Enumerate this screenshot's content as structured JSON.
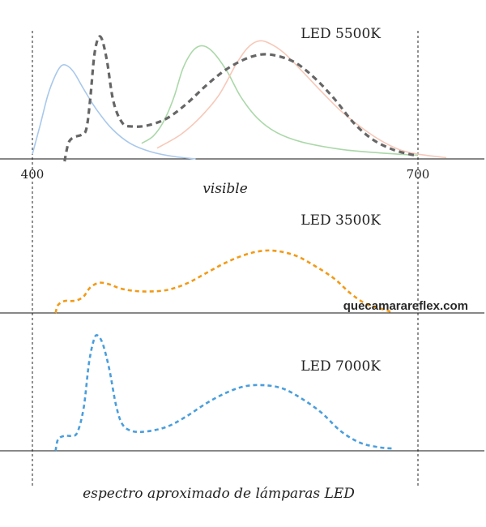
{
  "chart_data": [
    {
      "type": "line",
      "title": "LED 5500K",
      "xlabel": "visible",
      "xlim": [
        400,
        700
      ],
      "x_ticks": [
        "400",
        "700"
      ],
      "series": [
        {
          "color": "#a8c8ec",
          "style": "solid",
          "points": [
            [
              400,
              0.04
            ],
            [
              406,
              0.28
            ],
            [
              412,
              0.53
            ],
            [
              418,
              0.7
            ],
            [
              423,
              0.78
            ],
            [
              428,
              0.77
            ],
            [
              433,
              0.71
            ],
            [
              440,
              0.58
            ],
            [
              450,
              0.41
            ],
            [
              462,
              0.25
            ],
            [
              476,
              0.13
            ],
            [
              492,
              0.06
            ],
            [
              510,
              0.02
            ],
            [
              527,
              0.0
            ]
          ]
        },
        {
          "color": "#aad8a8",
          "style": "solid",
          "points": [
            [
              485,
              0.13
            ],
            [
              494,
              0.19
            ],
            [
              502,
              0.31
            ],
            [
              510,
              0.51
            ],
            [
              517,
              0.75
            ],
            [
              524,
              0.89
            ],
            [
              530,
              0.94
            ],
            [
              536,
              0.93
            ],
            [
              543,
              0.86
            ],
            [
              552,
              0.72
            ],
            [
              562,
              0.52
            ],
            [
              575,
              0.34
            ],
            [
              590,
              0.22
            ],
            [
              610,
              0.14
            ],
            [
              640,
              0.08
            ],
            [
              670,
              0.05
            ],
            [
              700,
              0.03
            ]
          ]
        },
        {
          "color": "#f7c8b8",
          "style": "solid",
          "points": [
            [
              497,
              0.09
            ],
            [
              515,
              0.2
            ],
            [
              530,
              0.34
            ],
            [
              545,
              0.53
            ],
            [
              558,
              0.78
            ],
            [
              567,
              0.92
            ],
            [
              575,
              0.98
            ],
            [
              583,
              0.97
            ],
            [
              595,
              0.89
            ],
            [
              610,
              0.73
            ],
            [
              625,
              0.56
            ],
            [
              640,
              0.4
            ],
            [
              655,
              0.27
            ],
            [
              670,
              0.16
            ],
            [
              685,
              0.08
            ],
            [
              700,
              0.04
            ],
            [
              722,
              0.01
            ]
          ]
        },
        {
          "color": "#666666",
          "style": "dashed",
          "points": [
            [
              425,
              -0.02
            ],
            [
              428,
              0.13
            ],
            [
              432,
              0.18
            ],
            [
              438,
              0.2
            ],
            [
              442,
              0.25
            ],
            [
              445,
              0.5
            ],
            [
              448,
              0.85
            ],
            [
              451,
              1.0
            ],
            [
              454,
              1.0
            ],
            [
              458,
              0.82
            ],
            [
              463,
              0.48
            ],
            [
              470,
              0.3
            ],
            [
              478,
              0.27
            ],
            [
              490,
              0.28
            ],
            [
              505,
              0.34
            ],
            [
              520,
              0.46
            ],
            [
              535,
              0.61
            ],
            [
              550,
              0.74
            ],
            [
              565,
              0.83
            ],
            [
              578,
              0.87
            ],
            [
              590,
              0.86
            ],
            [
              605,
              0.8
            ],
            [
              620,
              0.67
            ],
            [
              635,
              0.5
            ],
            [
              650,
              0.3
            ],
            [
              665,
              0.16
            ],
            [
              680,
              0.08
            ],
            [
              693,
              0.04
            ],
            [
              700,
              0.03
            ]
          ]
        }
      ]
    },
    {
      "type": "line",
      "title": "LED 3500K",
      "xlim": [
        400,
        700
      ],
      "series": [
        {
          "color": "#f29a16",
          "style": "dashed",
          "points": [
            [
              418,
              0.0
            ],
            [
              420,
              0.1
            ],
            [
              425,
              0.15
            ],
            [
              430,
              0.15
            ],
            [
              435,
              0.16
            ],
            [
              440,
              0.21
            ],
            [
              445,
              0.32
            ],
            [
              452,
              0.38
            ],
            [
              460,
              0.36
            ],
            [
              468,
              0.31
            ],
            [
              478,
              0.28
            ],
            [
              490,
              0.27
            ],
            [
              505,
              0.29
            ],
            [
              520,
              0.37
            ],
            [
              535,
              0.5
            ],
            [
              550,
              0.63
            ],
            [
              565,
              0.73
            ],
            [
              578,
              0.78
            ],
            [
              590,
              0.78
            ],
            [
              605,
              0.72
            ],
            [
              620,
              0.59
            ],
            [
              635,
              0.43
            ],
            [
              648,
              0.24
            ],
            [
              660,
              0.11
            ],
            [
              672,
              0.05
            ],
            [
              680,
              0.01
            ]
          ]
        }
      ]
    },
    {
      "type": "line",
      "title": "LED 7000K",
      "xlim": [
        400,
        700
      ],
      "series": [
        {
          "color": "#4a9edc",
          "style": "dashed",
          "points": [
            [
              418,
              0.0
            ],
            [
              420,
              0.1
            ],
            [
              425,
              0.13
            ],
            [
              430,
              0.13
            ],
            [
              435,
              0.16
            ],
            [
              440,
              0.38
            ],
            [
              444,
              0.76
            ],
            [
              448,
              0.97
            ],
            [
              451,
              1.0
            ],
            [
              455,
              0.92
            ],
            [
              460,
              0.7
            ],
            [
              465,
              0.4
            ],
            [
              470,
              0.23
            ],
            [
              478,
              0.17
            ],
            [
              490,
              0.17
            ],
            [
              505,
              0.21
            ],
            [
              520,
              0.3
            ],
            [
              535,
              0.41
            ],
            [
              550,
              0.5
            ],
            [
              565,
              0.56
            ],
            [
              580,
              0.57
            ],
            [
              595,
              0.54
            ],
            [
              610,
              0.45
            ],
            [
              625,
              0.33
            ],
            [
              640,
              0.17
            ],
            [
              655,
              0.07
            ],
            [
              670,
              0.03
            ],
            [
              680,
              0.02
            ]
          ]
        }
      ]
    }
  ],
  "caption": "espectro aproximado de lámparas LED",
  "watermark": "quecamarareflex.com"
}
